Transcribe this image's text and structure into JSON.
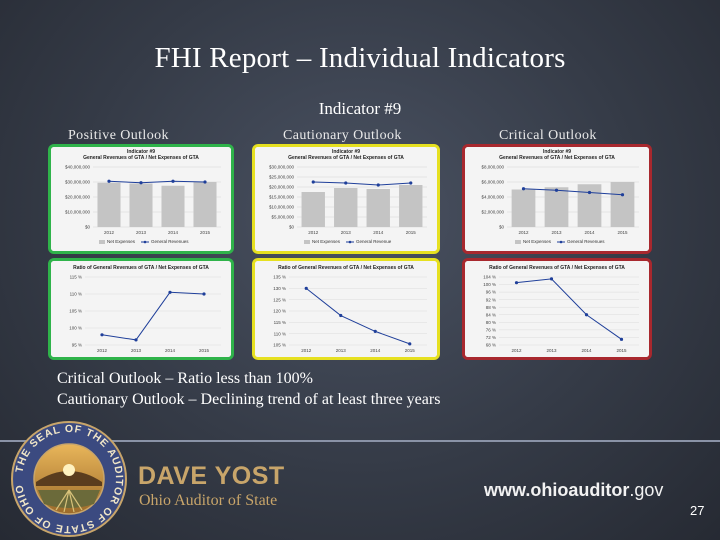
{
  "slide": {
    "title": "FHI Report – Individual Indicators",
    "subtitle": "Indicator #9",
    "columns": [
      "Positive Outlook",
      "Cautionary Outlook",
      "Critical Outlook"
    ],
    "notes": [
      "Critical Outlook – Ratio less than 100%",
      "Cautionary Outlook – Declining trend of at least three years"
    ],
    "footer": {
      "name": "DAVE YOST",
      "role": "Ohio Auditor of State",
      "website_main": "www.ohioauditor",
      "website_domain": ".gov",
      "page_number": "27",
      "seal_text": "THE SEAL OF THE AUDITOR OF STATE OF OHIO"
    }
  },
  "colors": {
    "positive": "#2fb34a",
    "cautionary": "#e6e020",
    "critical": "#a8282e"
  },
  "chart_data": [
    {
      "type": "bar",
      "outlook": "Positive",
      "title_top": "Indicator #9",
      "title": "General Revenues of GTA / Net Expenses of GTA",
      "categories": [
        "2012",
        "2013",
        "2014",
        "2015"
      ],
      "ylim": [
        0,
        40000000
      ],
      "yticks": [
        "$0",
        "$10,000,000",
        "$20,000,000",
        "$30,000,000",
        "$40,000,000"
      ],
      "series": [
        {
          "name": "Net Expenses",
          "type": "bar",
          "values": [
            29500000,
            29000000,
            27500000,
            30000000
          ]
        },
        {
          "name": "General Revenues",
          "type": "line",
          "values": [
            30500000,
            29500000,
            30500000,
            30000000
          ]
        }
      ],
      "legend": "bottom"
    },
    {
      "type": "bar",
      "outlook": "Cautionary",
      "title_top": "Indicator #9",
      "title": "General Revenues of GTA / Net Expenses of GTA",
      "categories": [
        "2012",
        "2013",
        "2014",
        "2015"
      ],
      "ylim": [
        0,
        30000000
      ],
      "yticks": [
        "$0",
        "$5,000,000",
        "$10,000,000",
        "$15,000,000",
        "$20,000,000",
        "$25,000,000",
        "$30,000,000"
      ],
      "series": [
        {
          "name": "Net Expenses",
          "type": "bar",
          "values": [
            17500000,
            19500000,
            19000000,
            21000000
          ]
        },
        {
          "name": "General Revenue",
          "type": "line",
          "values": [
            22500000,
            22000000,
            21000000,
            22000000
          ]
        }
      ],
      "legend": "bottom"
    },
    {
      "type": "bar",
      "outlook": "Critical",
      "title_top": "Indicator #9",
      "title": "General Revenues of GTA / Net Expenses of GTA",
      "categories": [
        "2012",
        "2013",
        "2014",
        "2015"
      ],
      "ylim": [
        0,
        8000000
      ],
      "yticks": [
        "$0",
        "$2,000,000",
        "$4,000,000",
        "$6,000,000",
        "$8,000,000"
      ],
      "series": [
        {
          "name": "Net Expenses",
          "type": "bar",
          "values": [
            5000000,
            5300000,
            5700000,
            6000000
          ]
        },
        {
          "name": "General Revenues",
          "type": "line",
          "values": [
            5100000,
            4900000,
            4600000,
            4300000
          ]
        }
      ],
      "legend": "bottom"
    },
    {
      "type": "line",
      "outlook": "Positive",
      "title": "Ratio of General Revenues of GTA / Net Expenses of GTA",
      "categories": [
        "2012",
        "2013",
        "2014",
        "2015"
      ],
      "ylim": [
        95,
        115
      ],
      "yticks": [
        "95 %",
        "100 %",
        "105 %",
        "110 %",
        "115 %"
      ],
      "values": [
        98,
        96.5,
        110.5,
        110
      ]
    },
    {
      "type": "line",
      "outlook": "Cautionary",
      "title": "Ratio of General Revenues of GTA / Net Expenses of GTA",
      "categories": [
        "2012",
        "2013",
        "2014",
        "2015"
      ],
      "ylim": [
        105,
        135
      ],
      "yticks": [
        "105 %",
        "110 %",
        "115 %",
        "120 %",
        "125 %",
        "130 %",
        "135 %"
      ],
      "values": [
        130,
        118,
        111,
        105.5
      ]
    },
    {
      "type": "line",
      "outlook": "Critical",
      "title": "Ratio of General Revenues of GTA / Net Expenses of GTA",
      "categories": [
        "2012",
        "2013",
        "2014",
        "2015"
      ],
      "ylim": [
        68,
        104
      ],
      "yticks": [
        "68 %",
        "72 %",
        "76 %",
        "80 %",
        "84 %",
        "88 %",
        "92 %",
        "96 %",
        "100 %",
        "104 %"
      ],
      "values": [
        101,
        103,
        84,
        71
      ]
    }
  ]
}
